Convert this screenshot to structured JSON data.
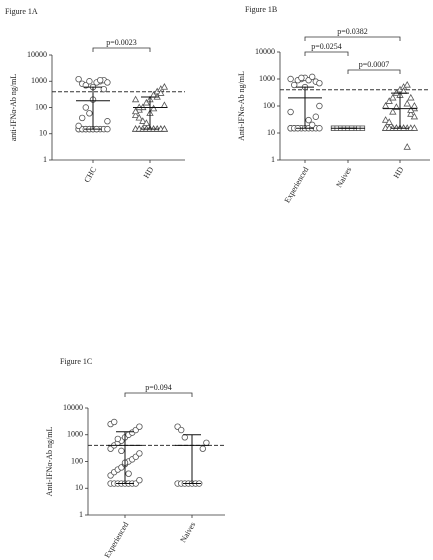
{
  "chart_data": [
    {
      "type": "scatter",
      "title": "Figure 1A",
      "y_label": "anti-IFNα-Ab ng/mL",
      "log": true,
      "ylim": [
        1,
        10000
      ],
      "yticks": [
        1,
        10,
        100,
        1000,
        10000
      ],
      "threshold": 400,
      "categories": [
        "CHC",
        "HD"
      ],
      "markers": [
        "circle",
        "triangle"
      ],
      "values": [
        [
          15,
          15,
          15,
          15,
          15,
          15,
          15,
          15,
          15,
          15,
          15,
          15,
          15,
          15,
          15,
          1000,
          1100,
          900,
          1200,
          800,
          700,
          1000,
          600,
          900,
          1100,
          500,
          30,
          20,
          40,
          100,
          60,
          200
        ],
        [
          15,
          15,
          15,
          15,
          15,
          15,
          15,
          15,
          15,
          15,
          15,
          15,
          15,
          15,
          15,
          15,
          15,
          15,
          50,
          80,
          100,
          150,
          200,
          300,
          400,
          500,
          120,
          70,
          40,
          30,
          25,
          60,
          90,
          250,
          350,
          600,
          200,
          100
        ]
      ],
      "means": [
        180,
        100
      ],
      "error_low": [
        15,
        15
      ],
      "error_high": [
        600,
        250
      ],
      "comparisons": [
        {
          "pair": [
            0,
            1
          ],
          "label": "p=0.0023"
        }
      ]
    },
    {
      "type": "scatter",
      "title": "Figure 1B",
      "y_label": "Anti-IFNα-Ab ng/mL",
      "log": true,
      "ylim": [
        1,
        10000
      ],
      "yticks": [
        1,
        10,
        100,
        1000,
        10000
      ],
      "threshold": 400,
      "categories": [
        "Experienced",
        "Naives",
        "HD"
      ],
      "markers": [
        "circle",
        "square",
        "triangle"
      ],
      "values": [
        [
          15,
          15,
          15,
          15,
          15,
          15,
          15,
          15,
          15,
          15,
          15,
          15,
          1000,
          1100,
          900,
          1200,
          800,
          700,
          1000,
          600,
          900,
          1100,
          500,
          30,
          20,
          40,
          100,
          60
        ],
        [
          15,
          15,
          15,
          15,
          15,
          15,
          15,
          15,
          15,
          15,
          15,
          15,
          15,
          15,
          15
        ],
        [
          15,
          15,
          15,
          15,
          15,
          15,
          15,
          15,
          15,
          15,
          15,
          15,
          15,
          15,
          15,
          3,
          50,
          80,
          100,
          150,
          200,
          300,
          400,
          500,
          120,
          70,
          40,
          30,
          25,
          60,
          90,
          250,
          350,
          600,
          200,
          100
        ]
      ],
      "means": [
        200,
        15,
        80
      ],
      "error_low": [
        15,
        15,
        15
      ],
      "error_high": [
        500,
        15,
        300
      ],
      "comparisons": [
        {
          "pair": [
            0,
            2
          ],
          "label": "p=0.0382"
        },
        {
          "pair": [
            0,
            1
          ],
          "label": "p=0.0254"
        },
        {
          "pair": [
            1,
            2
          ],
          "label": "p=0.0007"
        }
      ]
    },
    {
      "type": "scatter",
      "title": "Figure 1C",
      "y_label": "Anti-IFNα-Ab ng/mL",
      "log": true,
      "ylim": [
        1,
        10000
      ],
      "yticks": [
        1,
        10,
        100,
        1000,
        10000
      ],
      "threshold": 400,
      "categories": [
        "Experienced",
        "Naives"
      ],
      "markers": [
        "circle",
        "circle"
      ],
      "values": [
        [
          15,
          15,
          15,
          15,
          15,
          15,
          15,
          15,
          20,
          30,
          40,
          50,
          60,
          80,
          100,
          120,
          150,
          200,
          300,
          400,
          500,
          600,
          800,
          1000,
          1200,
          1500,
          2000,
          2500,
          3000,
          700,
          250,
          90,
          35
        ],
        [
          15,
          15,
          15,
          15,
          15,
          15,
          15,
          300,
          500,
          2000,
          1500,
          800
        ]
      ],
      "means": [
        400,
        400
      ],
      "error_low": [
        15,
        15
      ],
      "error_high": [
        1300,
        1000
      ],
      "comparisons": [
        {
          "pair": [
            0,
            1
          ],
          "label": "p=0.094"
        }
      ]
    }
  ]
}
